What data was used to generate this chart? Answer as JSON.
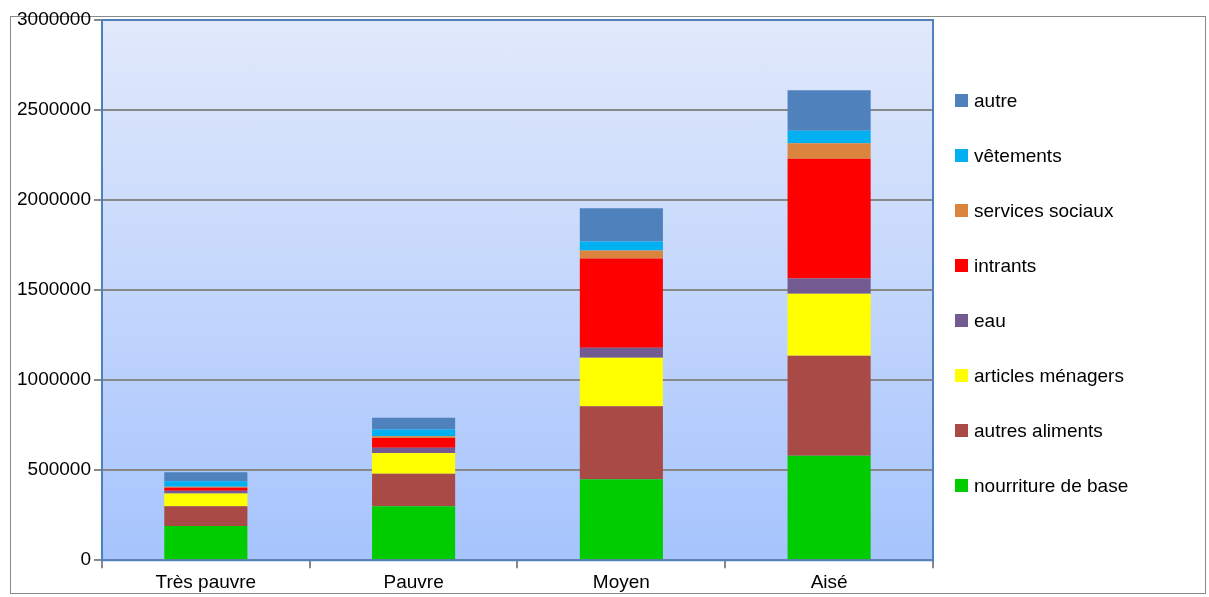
{
  "chart_data": {
    "type": "bar",
    "stacked": true,
    "categories": [
      "Très pauvre",
      "Pauvre",
      "Moyen",
      "Aisé"
    ],
    "series": [
      {
        "name": "nourriture de base",
        "color": "#00cc00",
        "values": [
          190000,
          300000,
          450000,
          580000
        ]
      },
      {
        "name": "autres aliments",
        "color": "#a94a46",
        "values": [
          110000,
          180000,
          405000,
          555000
        ]
      },
      {
        "name": "articles ménagers",
        "color": "#ffff00",
        "values": [
          70000,
          115000,
          270000,
          345000
        ]
      },
      {
        "name": "eau",
        "color": "#735a91",
        "values": [
          15000,
          30000,
          55000,
          85000
        ]
      },
      {
        "name": "intrants",
        "color": "#ff0000",
        "values": [
          17000,
          53000,
          495000,
          665000
        ]
      },
      {
        "name": "services sociaux",
        "color": "#db843d",
        "values": [
          6000,
          10000,
          45000,
          85000
        ]
      },
      {
        "name": "vêtements",
        "color": "#00b0f0",
        "values": [
          31000,
          38000,
          50000,
          70000
        ]
      },
      {
        "name": "autre",
        "color": "#4f81bd",
        "values": [
          50000,
          65000,
          185000,
          225000
        ]
      }
    ],
    "ylim": [
      0,
      3000000
    ],
    "yticks": [
      0,
      500000,
      1000000,
      1500000,
      2000000,
      2500000,
      3000000
    ],
    "grid": "y",
    "legend": "right"
  }
}
